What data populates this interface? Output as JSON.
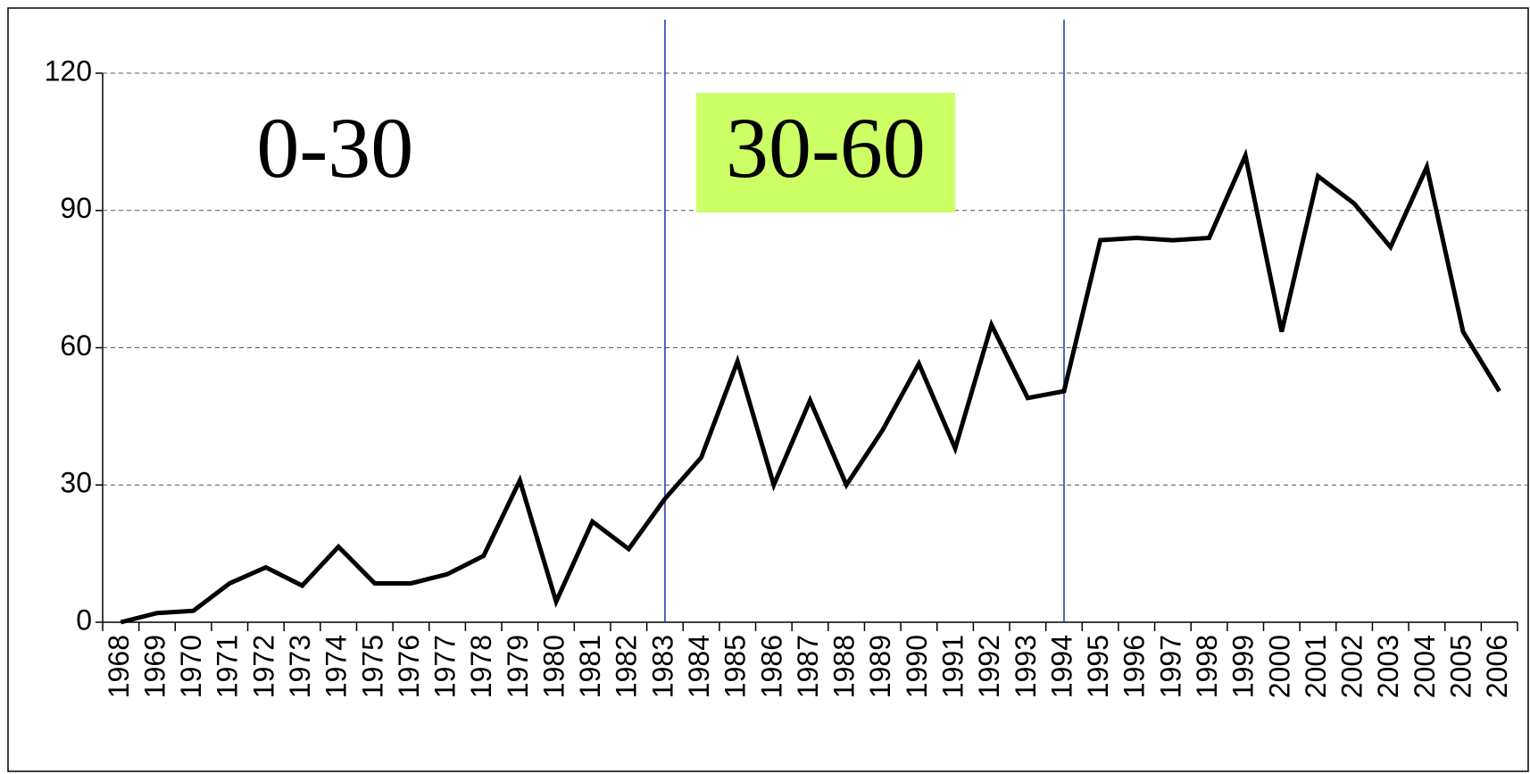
{
  "chart_data": {
    "type": "line",
    "categories": [
      "1968",
      "1969",
      "1970",
      "1971",
      "1972",
      "1973",
      "1974",
      "1975",
      "1976",
      "1977",
      "1978",
      "1979",
      "1980",
      "1981",
      "1982",
      "1983",
      "1984",
      "1985",
      "1986",
      "1987",
      "1988",
      "1989",
      "1990",
      "1991",
      "1992",
      "1993",
      "1994",
      "1995",
      "1996",
      "1997",
      "1998",
      "1999",
      "2000",
      "2001",
      "2002",
      "2003",
      "2004",
      "2005",
      "2006"
    ],
    "values": [
      0,
      2,
      2.5,
      8.5,
      12,
      8,
      16.5,
      8.5,
      8.5,
      10.5,
      14.5,
      31,
      4.5,
      22,
      16,
      27,
      36,
      57,
      30,
      48.5,
      30,
      42,
      56.5,
      38,
      65,
      49,
      50.5,
      83.5,
      84,
      83.5,
      84,
      102,
      63.5,
      97.5,
      91.5,
      82,
      99.5,
      63.5,
      50.5
    ],
    "color": "#000000",
    "ylim": [
      0,
      120
    ],
    "yticks": [
      0,
      30,
      60,
      90,
      120
    ],
    "grid": true,
    "vlines": [
      "1983",
      "1994"
    ],
    "vline_color": "#2233aa",
    "annotations": [
      {
        "text": "0-30"
      },
      {
        "text": "30-60",
        "background": "#ccff66"
      }
    ]
  }
}
